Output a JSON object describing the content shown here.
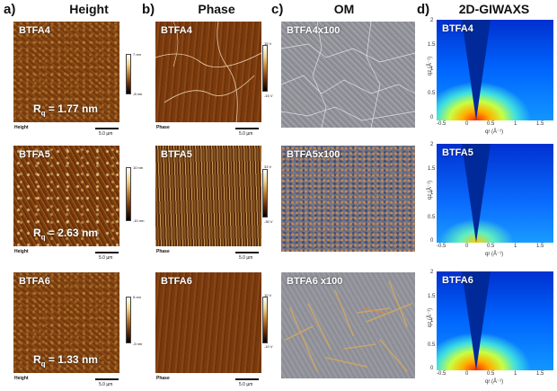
{
  "panels": {
    "a": {
      "letter": "a)",
      "title": "Height"
    },
    "b": {
      "letter": "b)",
      "title": "Phase"
    },
    "c": {
      "letter": "c)",
      "title": "OM"
    },
    "d": {
      "letter": "d)",
      "title": "2D-GIWAXS"
    }
  },
  "rows": [
    {
      "height_label": "BTFA4",
      "rq_value": "1.77 nm",
      "height_cap": "Height",
      "height_scale": "5.0 µm",
      "height_cbar_top": "7 nm",
      "height_cbar_bottom": "-8 nm",
      "phase_label": "BTFA4",
      "phase_cap": "Phase",
      "phase_scale": "5.0 µm",
      "phase_cbar_top": "15 V",
      "phase_cbar_bottom": "-15 V",
      "om_label": "BTFA4x100",
      "giwaxs_label": "BTFA4"
    },
    {
      "height_label": "BTFA5",
      "rq_value": "2.63 nm",
      "height_cap": "Height",
      "height_scale": "5.0 µm",
      "height_cbar_top": "10 nm",
      "height_cbar_bottom": "-10 nm",
      "phase_label": "BTFA5",
      "phase_cap": "Phase",
      "phase_scale": "5.0 µm",
      "phase_cbar_top": "33 V",
      "phase_cbar_bottom": "-30 V",
      "om_label": "BTFA5x100",
      "giwaxs_label": "BTFA5"
    },
    {
      "height_label": "BTFA6",
      "rq_value": "1.33 nm",
      "height_cap": "Height",
      "height_scale": "5.0 µm",
      "height_cbar_top": "5 nm",
      "height_cbar_bottom": "-5 nm",
      "phase_label": "BTFA6",
      "phase_cap": "Phase",
      "phase_scale": "5.0 µm",
      "phase_cbar_top": "10 V",
      "phase_cbar_bottom": "-10 V",
      "om_label": "BTFA6 x100",
      "giwaxs_label": "BTFA6"
    }
  ],
  "giwaxs_axes": {
    "y_label": "qz (Å⁻¹)",
    "x_label": "qr (Å⁻¹)",
    "y_ticks": [
      "2",
      "1.5",
      "1",
      "0.5",
      "0"
    ],
    "x_ticks": [
      "-0.5",
      "0",
      "0.5",
      "1",
      "1.5"
    ]
  },
  "rq_symbol": "R",
  "rq_sub": "q",
  "colors": {
    "afm_dark": "#6c3409",
    "afm_mid": "#8d4a14",
    "om_grey": "#9fa0a6",
    "giwaxs_blue": "#0066ff",
    "giwaxs_hot": "#ff2a00"
  }
}
